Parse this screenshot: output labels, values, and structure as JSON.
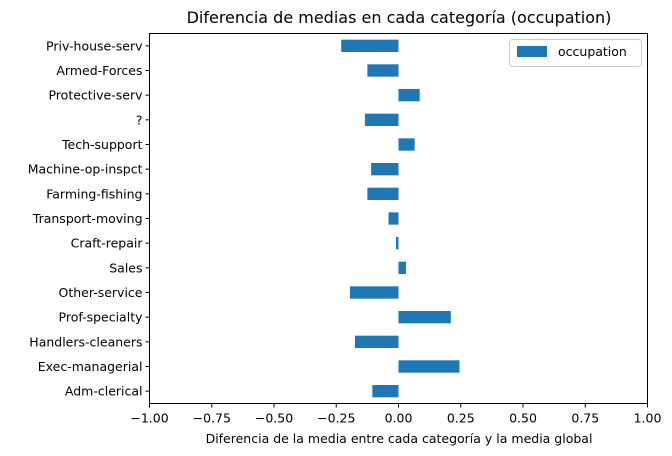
{
  "chart_data": {
    "type": "bar",
    "orientation": "horizontal",
    "title": "Diferencia de medias en cada categoría (occupation)",
    "xlabel": "Diferencia de la media entre cada categoría y la media global",
    "ylabel": "",
    "xlim": [
      -1.0,
      1.0
    ],
    "xticks": [
      -1.0,
      -0.75,
      -0.5,
      -0.25,
      0.0,
      0.25,
      0.5,
      0.75,
      1.0
    ],
    "xtick_labels": [
      "−1.00",
      "−0.75",
      "−0.50",
      "−0.25",
      "0.00",
      "0.25",
      "0.50",
      "0.75",
      "1.00"
    ],
    "grid": false,
    "legend": {
      "position": "top-right",
      "entries": [
        "occupation"
      ]
    },
    "bar_color": "#1f77b4",
    "categories": [
      "Adm-clerical",
      "Exec-managerial",
      "Handlers-cleaners",
      "Prof-specialty",
      "Other-service",
      "Sales",
      "Craft-repair",
      "Transport-moving",
      "Farming-fishing",
      "Machine-op-inspct",
      "Tech-support",
      "?",
      "Protective-serv",
      "Armed-Forces",
      "Priv-house-serv"
    ],
    "series": [
      {
        "name": "occupation",
        "values": [
          -0.105,
          0.245,
          -0.175,
          0.21,
          -0.195,
          0.03,
          -0.01,
          -0.04,
          -0.125,
          -0.11,
          0.065,
          -0.135,
          0.085,
          -0.125,
          -0.23
        ]
      }
    ]
  }
}
